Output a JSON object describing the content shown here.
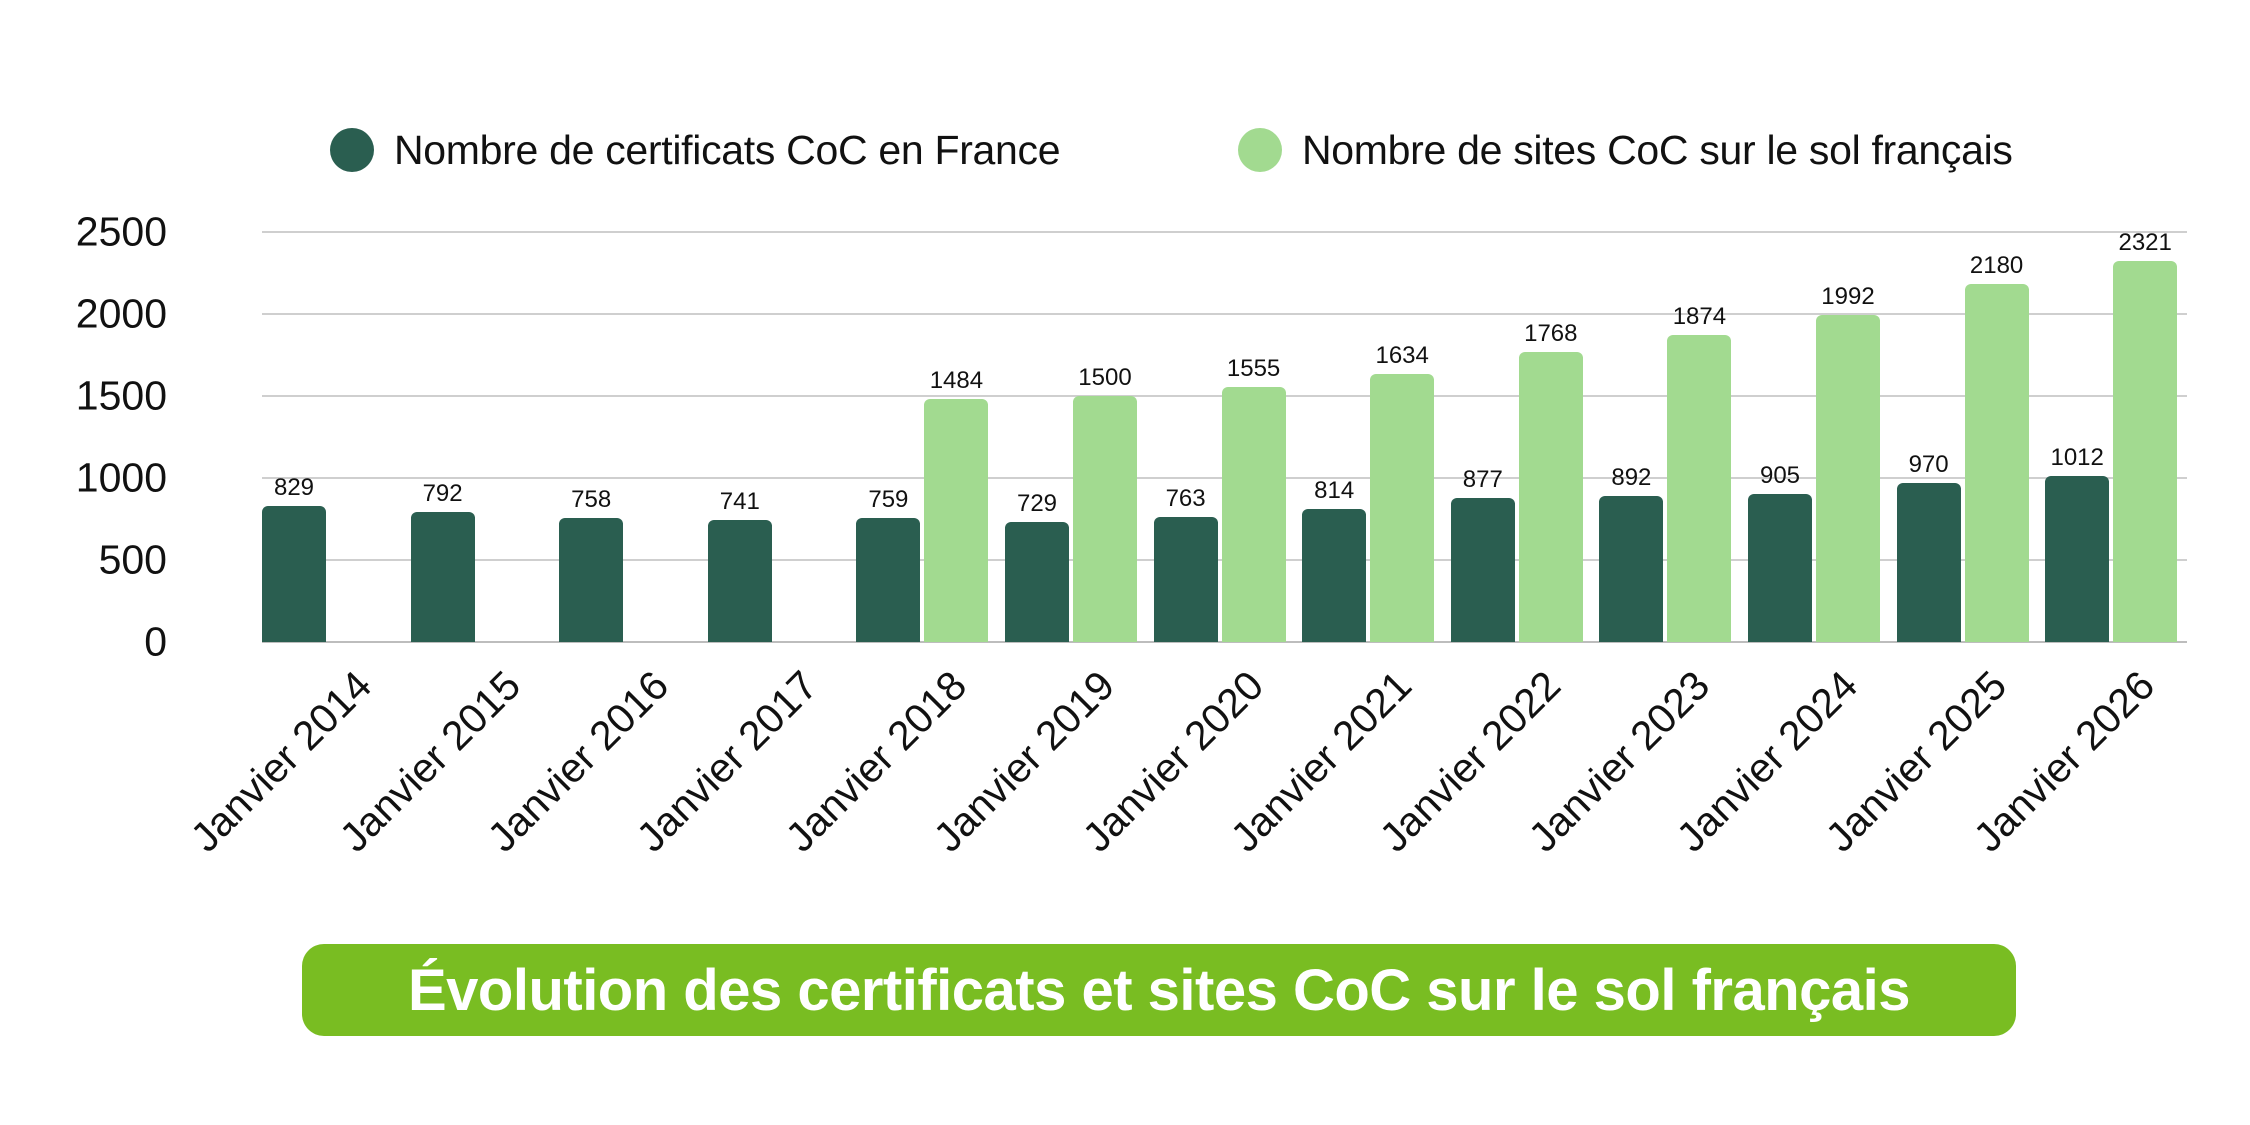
{
  "colors": {
    "series_dark": "#2a5e50",
    "series_light": "#a2da90",
    "banner": "#79bd22",
    "grid": "#cfcfcf",
    "text": "#111111"
  },
  "legend": {
    "items": [
      {
        "label": "Nombre de certificats CoC en France",
        "color": "#2a5e50"
      },
      {
        "label": "Nombre de sites CoC sur le sol français",
        "color": "#a2da90"
      }
    ]
  },
  "title": "Évolution des certificats et sites CoC sur le sol français",
  "chart_data": {
    "type": "bar",
    "title": "Évolution des certificats et sites CoC sur le sol français",
    "xlabel": "",
    "ylabel": "",
    "ylim": [
      0,
      2500
    ],
    "yticks": [
      0,
      500,
      1000,
      1500,
      2000,
      2500
    ],
    "grid": true,
    "legend_position": "top",
    "categories": [
      "Janvier 2014",
      "Janvier 2015",
      "Janvier 2016",
      "Janvier 2017",
      "Janvier 2018",
      "Janvier 2019",
      "Janvier 2020",
      "Janvier 2021",
      "Janvier 2022",
      "Janvier 2023",
      "Janvier 2024",
      "Janvier 2025",
      "Janvier 2026"
    ],
    "series": [
      {
        "name": "Nombre de certificats CoC en France",
        "color": "#2a5e50",
        "values": [
          829,
          792,
          758,
          741,
          759,
          729,
          763,
          814,
          877,
          892,
          905,
          970,
          1012
        ]
      },
      {
        "name": "Nombre de sites CoC sur le sol français",
        "color": "#a2da90",
        "values": [
          null,
          null,
          null,
          null,
          1484,
          1500,
          1555,
          1634,
          1768,
          1874,
          1992,
          2180,
          2321
        ]
      }
    ]
  }
}
